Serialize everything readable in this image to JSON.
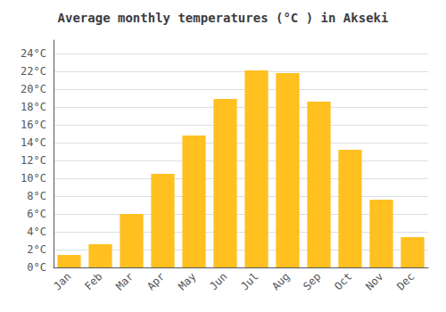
{
  "chart_data": {
    "type": "bar",
    "title": "Average monthly temperatures (°C ) in Akseki",
    "categories": [
      "Jan",
      "Feb",
      "Mar",
      "Apr",
      "May",
      "Jun",
      "Jul",
      "Aug",
      "Sep",
      "Oct",
      "Nov",
      "Dec"
    ],
    "values": [
      1.4,
      2.6,
      6.0,
      10.5,
      14.8,
      18.9,
      22.1,
      21.8,
      18.6,
      13.2,
      7.6,
      3.4
    ],
    "color": "#FFC020",
    "ylim": [
      0,
      25.5
    ],
    "yticks": [
      {
        "value": 0,
        "label": "0°C"
      },
      {
        "value": 2,
        "label": "2°C"
      },
      {
        "value": 4,
        "label": "4°C"
      },
      {
        "value": 6,
        "label": "6°C"
      },
      {
        "value": 8,
        "label": "8°C"
      },
      {
        "value": 10,
        "label": "10°C"
      },
      {
        "value": 12,
        "label": "12°C"
      },
      {
        "value": 14,
        "label": "14°C"
      },
      {
        "value": 16,
        "label": "16°C"
      },
      {
        "value": 18,
        "label": "18°C"
      },
      {
        "value": 20,
        "label": "20°C"
      },
      {
        "value": 22,
        "label": "22°C"
      },
      {
        "value": 24,
        "label": "24°C"
      }
    ],
    "grid": true
  }
}
